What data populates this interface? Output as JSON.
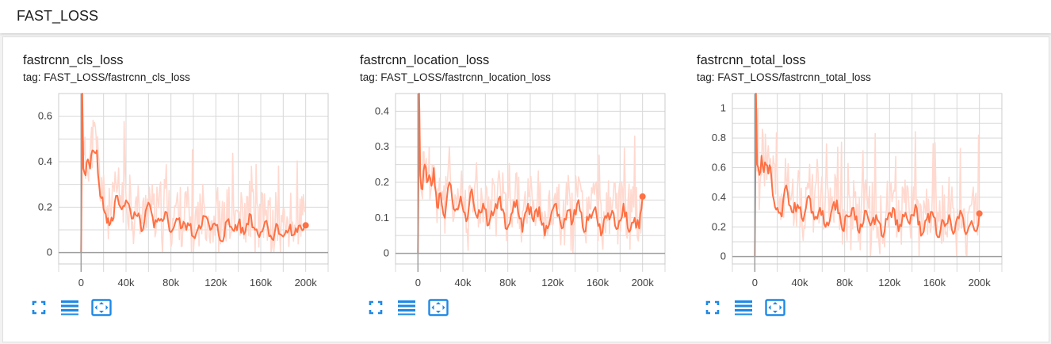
{
  "section": {
    "title": "FAST_LOSS"
  },
  "colors": {
    "raw": "#ffd9cf",
    "smooth": "#ff7043",
    "grid": "#d8d8d8",
    "axis": "#9e9e9e",
    "icon": "#1e88e5"
  },
  "icons": [
    "expand-icon",
    "lines-icon",
    "fit-domain-icon"
  ],
  "charts": [
    {
      "title": "fastrcnn_cls_loss",
      "tag": "tag: FAST_LOSS/fastrcnn_cls_loss",
      "chart_data": {
        "type": "line",
        "x_ticks": [
          "0",
          "40k",
          "80k",
          "120k",
          "160k",
          "200k"
        ],
        "y_ticks": [
          "0",
          "0.2",
          "0.4",
          "0.6"
        ],
        "xlim": [
          -20000,
          220000
        ],
        "ylim": [
          -0.05,
          0.7
        ],
        "series": [
          {
            "x": [
              0,
              1000,
              2000,
              4000,
              6000,
              8000,
              10000,
              12000,
              14000,
              16000,
              18000,
              20000,
              22000,
              25000,
              28000,
              31000,
              35000,
              40000,
              45000,
              50000,
              55000,
              60000,
              65000,
              70000,
              75000,
              80000,
              85000,
              90000,
              95000,
              100000,
              105000,
              110000,
              115000,
              120000,
              125000,
              130000,
              135000,
              140000,
              145000,
              150000,
              155000,
              160000,
              165000,
              170000,
              175000,
              180000,
              185000,
              190000,
              195000,
              198000,
              200000
            ],
            "values": [
              0.0,
              0.7,
              0.37,
              0.34,
              0.41,
              0.37,
              0.45,
              0.44,
              0.45,
              0.3,
              0.24,
              0.19,
              0.17,
              0.12,
              0.14,
              0.25,
              0.2,
              0.23,
              0.15,
              0.16,
              0.1,
              0.22,
              0.11,
              0.14,
              0.18,
              0.09,
              0.15,
              0.11,
              0.13,
              0.07,
              0.12,
              0.16,
              0.1,
              0.12,
              0.05,
              0.14,
              0.1,
              0.13,
              0.08,
              0.17,
              0.1,
              0.09,
              0.14,
              0.06,
              0.12,
              0.07,
              0.1,
              0.08,
              0.12,
              0.1,
              0.12
            ]
          }
        ]
      }
    },
    {
      "title": "fastrcnn_location_loss",
      "tag": "tag: FAST_LOSS/fastrcnn_location_loss",
      "chart_data": {
        "type": "line",
        "x_ticks": [
          "0",
          "40k",
          "80k",
          "120k",
          "160k",
          "200k"
        ],
        "y_ticks": [
          "0",
          "0.1",
          "0.2",
          "0.3",
          "0.4"
        ],
        "xlim": [
          -20000,
          220000
        ],
        "ylim": [
          -0.03,
          0.45
        ],
        "series": [
          {
            "x": [
              0,
              1000,
              2000,
              4000,
              6000,
              8000,
              10000,
              12000,
              14000,
              17000,
              20000,
              24000,
              28000,
              33000,
              38000,
              43000,
              48000,
              53000,
              58000,
              63000,
              68000,
              73000,
              78000,
              83000,
              88000,
              93000,
              98000,
              103000,
              108000,
              113000,
              118000,
              123000,
              128000,
              133000,
              138000,
              143000,
              148000,
              153000,
              158000,
              163000,
              168000,
              173000,
              178000,
              183000,
              188000,
              193000,
              197000,
              200000
            ],
            "values": [
              0.0,
              0.45,
              0.22,
              0.18,
              0.25,
              0.2,
              0.22,
              0.19,
              0.24,
              0.13,
              0.17,
              0.1,
              0.2,
              0.12,
              0.16,
              0.09,
              0.18,
              0.1,
              0.14,
              0.08,
              0.12,
              0.16,
              0.07,
              0.11,
              0.15,
              0.06,
              0.14,
              0.09,
              0.13,
              0.05,
              0.1,
              0.14,
              0.07,
              0.12,
              0.09,
              0.15,
              0.06,
              0.11,
              0.13,
              0.05,
              0.1,
              0.12,
              0.07,
              0.14,
              0.06,
              0.1,
              0.07,
              0.16
            ]
          }
        ]
      }
    },
    {
      "title": "fastrcnn_total_loss",
      "tag": "tag: FAST_LOSS/fastrcnn_total_loss",
      "chart_data": {
        "type": "line",
        "x_ticks": [
          "0",
          "40k",
          "80k",
          "120k",
          "160k",
          "200k"
        ],
        "y_ticks": [
          "0",
          "0.2",
          "0.4",
          "0.6",
          "0.8",
          "1"
        ],
        "xlim": [
          -20000,
          220000
        ],
        "ylim": [
          -0.05,
          1.1
        ],
        "series": [
          {
            "x": [
              0,
              1000,
              2000,
              4000,
              6000,
              8000,
              10000,
              12000,
              14000,
              17000,
              20000,
              24000,
              28000,
              33000,
              38000,
              43000,
              48000,
              53000,
              58000,
              63000,
              68000,
              73000,
              78000,
              83000,
              88000,
              93000,
              98000,
              103000,
              108000,
              113000,
              118000,
              123000,
              128000,
              133000,
              138000,
              143000,
              148000,
              153000,
              158000,
              163000,
              168000,
              173000,
              178000,
              183000,
              188000,
              193000,
              197000,
              200000
            ],
            "values": [
              0.0,
              1.1,
              0.62,
              0.55,
              0.68,
              0.57,
              0.62,
              0.56,
              0.6,
              0.38,
              0.33,
              0.27,
              0.48,
              0.3,
              0.35,
              0.24,
              0.41,
              0.25,
              0.33,
              0.2,
              0.3,
              0.38,
              0.18,
              0.27,
              0.33,
              0.16,
              0.31,
              0.21,
              0.28,
              0.14,
              0.25,
              0.33,
              0.17,
              0.27,
              0.22,
              0.35,
              0.14,
              0.25,
              0.3,
              0.13,
              0.24,
              0.28,
              0.17,
              0.31,
              0.15,
              0.24,
              0.17,
              0.29
            ]
          }
        ]
      }
    }
  ]
}
